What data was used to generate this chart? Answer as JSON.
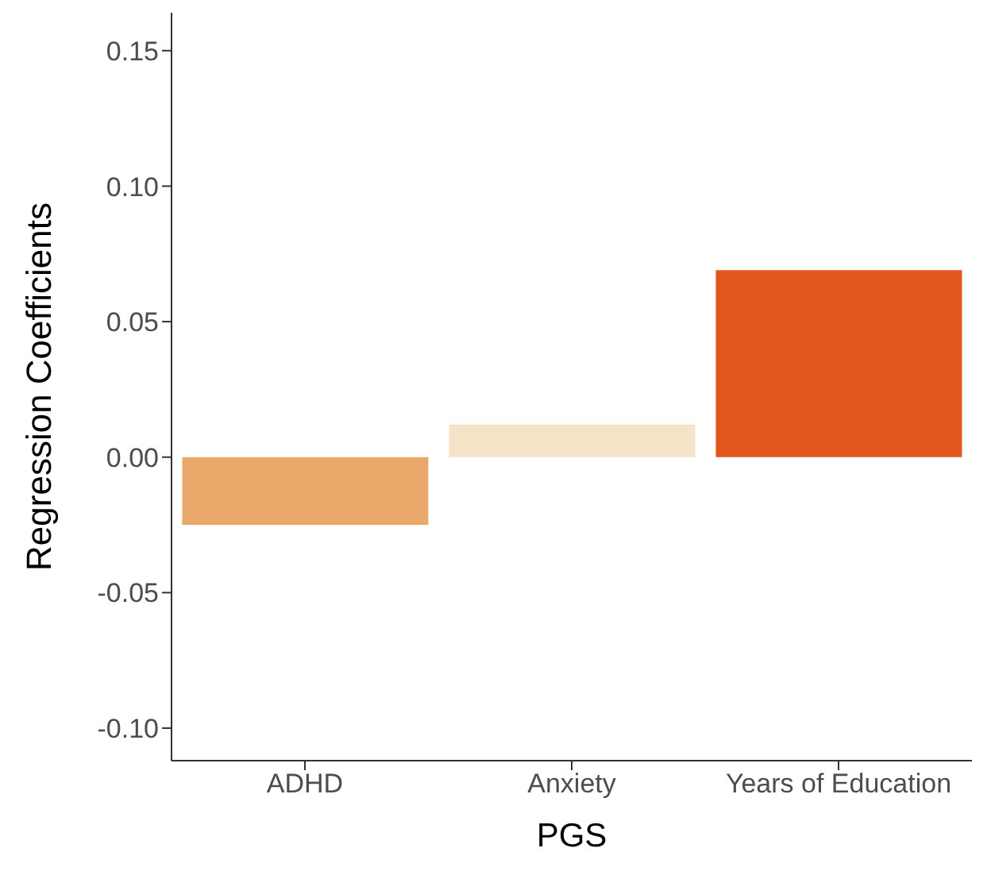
{
  "chart_data": {
    "type": "bar",
    "xlabel": "PGS",
    "ylabel": "Regression Coefficients",
    "categories": [
      "ADHD",
      "Anxiety",
      "Years of Education"
    ],
    "values": [
      -0.025,
      0.012,
      0.069
    ],
    "colors": [
      "#eba86b",
      "#f5e3c8",
      "#e3561e"
    ],
    "ylim": [
      -0.112,
      0.164
    ],
    "yticks": [
      {
        "value": -0.1,
        "label": "-0.10"
      },
      {
        "value": -0.05,
        "label": "-0.05"
      },
      {
        "value": 0,
        "label": "0.00"
      },
      {
        "value": 0.05,
        "label": "0.05"
      },
      {
        "value": 0.1,
        "label": "0.10"
      },
      {
        "value": 0.15,
        "label": "0.15"
      }
    ],
    "grid": false,
    "legend": false
  }
}
